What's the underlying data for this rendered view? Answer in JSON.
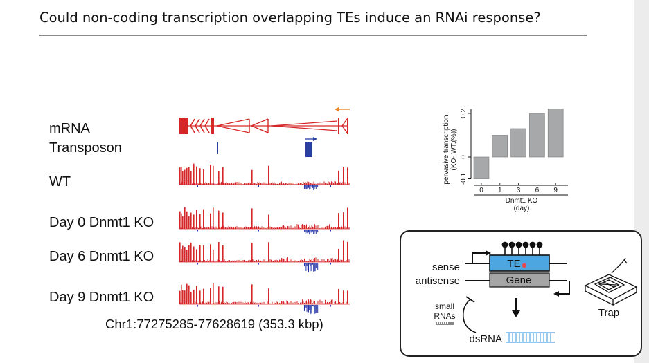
{
  "slide": {
    "title": "Could non-coding transcription overlapping TEs induce an RNAi response?"
  },
  "tracks": {
    "labels": [
      "mRNA",
      "Transposon",
      "WT",
      "Day 0 Dnmt1 KO",
      "Day 6 Dnmt1 KO",
      "Day 9 Dnmt1 KO"
    ],
    "coordinates": "Chr1:77275285-77628619 (353.3 kbp)",
    "colors": {
      "forward": "#d62728",
      "reverse": "#2233aa",
      "te": "#2b3fa0",
      "strand_arrow": "#e8821e"
    }
  },
  "chart_data": {
    "type": "bar",
    "categories": [
      "0",
      "1",
      "3",
      "6",
      "9"
    ],
    "values": [
      -0.1,
      0.1,
      0.13,
      0.2,
      0.22
    ],
    "ylabel": "pervasive transcription (KO- WT,(%))",
    "xlabel": "Dnmt1 KO (day)",
    "yticks": [
      "-0.1",
      "0",
      "0.2"
    ],
    "ylim": [
      -0.13,
      0.26
    ],
    "bar_color": "#a6a8aa",
    "grid": false
  },
  "diagram": {
    "sense": "sense",
    "antisense": "antisense",
    "te": "TE",
    "gene": "Gene",
    "small_rnas_line1": "small",
    "small_rnas_line2": "RNAs",
    "dsrna": "dsRNA",
    "trap": "Trap",
    "colors": {
      "te_box": "#4da6e0",
      "gene_box": "#a5a5a5",
      "dsrna": "#6fb4e6",
      "dot": "#e34b4b"
    }
  }
}
